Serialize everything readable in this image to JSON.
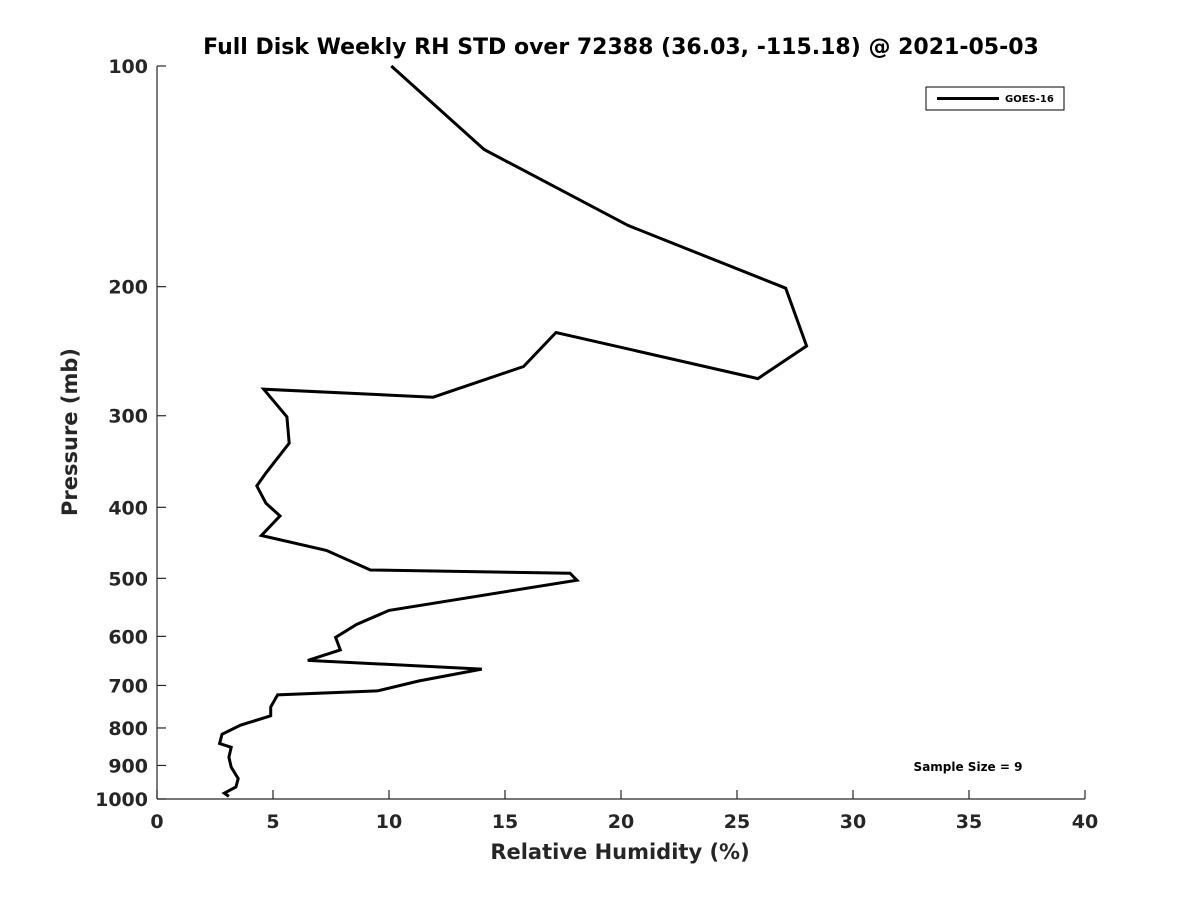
{
  "chart_data": {
    "type": "line",
    "title": "Full Disk Weekly RH STD over 72388 (36.03, -115.18) @ 2021-05-03",
    "xlabel": "Relative Humidity (%)",
    "ylabel": "Pressure (mb)",
    "xlim": [
      0,
      40
    ],
    "ylim": [
      100,
      1000
    ],
    "y_scale": "log",
    "y_direction": "reversed",
    "x_ticks": [
      0,
      5,
      10,
      15,
      20,
      25,
      30,
      35,
      40
    ],
    "y_ticks": [
      100,
      200,
      300,
      400,
      500,
      600,
      700,
      800,
      900,
      1000
    ],
    "grid": false,
    "legend": {
      "position": "top-right",
      "entries": [
        "GOES-16"
      ]
    },
    "annotation": "Sample Size = 9",
    "series": [
      {
        "name": "GOES-16",
        "color": "#000000",
        "x": [
          10.1,
          14.1,
          20.3,
          27.1,
          28.0,
          25.9,
          17.2,
          15.8,
          11.9,
          4.6,
          5.6,
          5.7,
          4.7,
          4.3,
          4.7,
          5.3,
          4.5,
          7.3,
          9.2,
          17.8,
          18.1,
          10.0,
          8.6,
          7.7,
          7.9,
          6.5,
          14.0,
          11.3,
          9.5,
          5.2,
          4.9,
          4.9,
          3.6,
          2.8,
          2.7,
          3.2,
          3.1,
          3.2,
          3.5,
          3.4,
          2.9,
          3.1
        ],
        "y": [
          100,
          130,
          165,
          201,
          241,
          267,
          231,
          257,
          283,
          276,
          301,
          327,
          359,
          374,
          395,
          411,
          437,
          458,
          487,
          492,
          503,
          553,
          578,
          602,
          626,
          647,
          665,
          690,
          712,
          721,
          749,
          770,
          793,
          816,
          840,
          850,
          877,
          905,
          938,
          963,
          982,
          992
        ]
      }
    ]
  }
}
